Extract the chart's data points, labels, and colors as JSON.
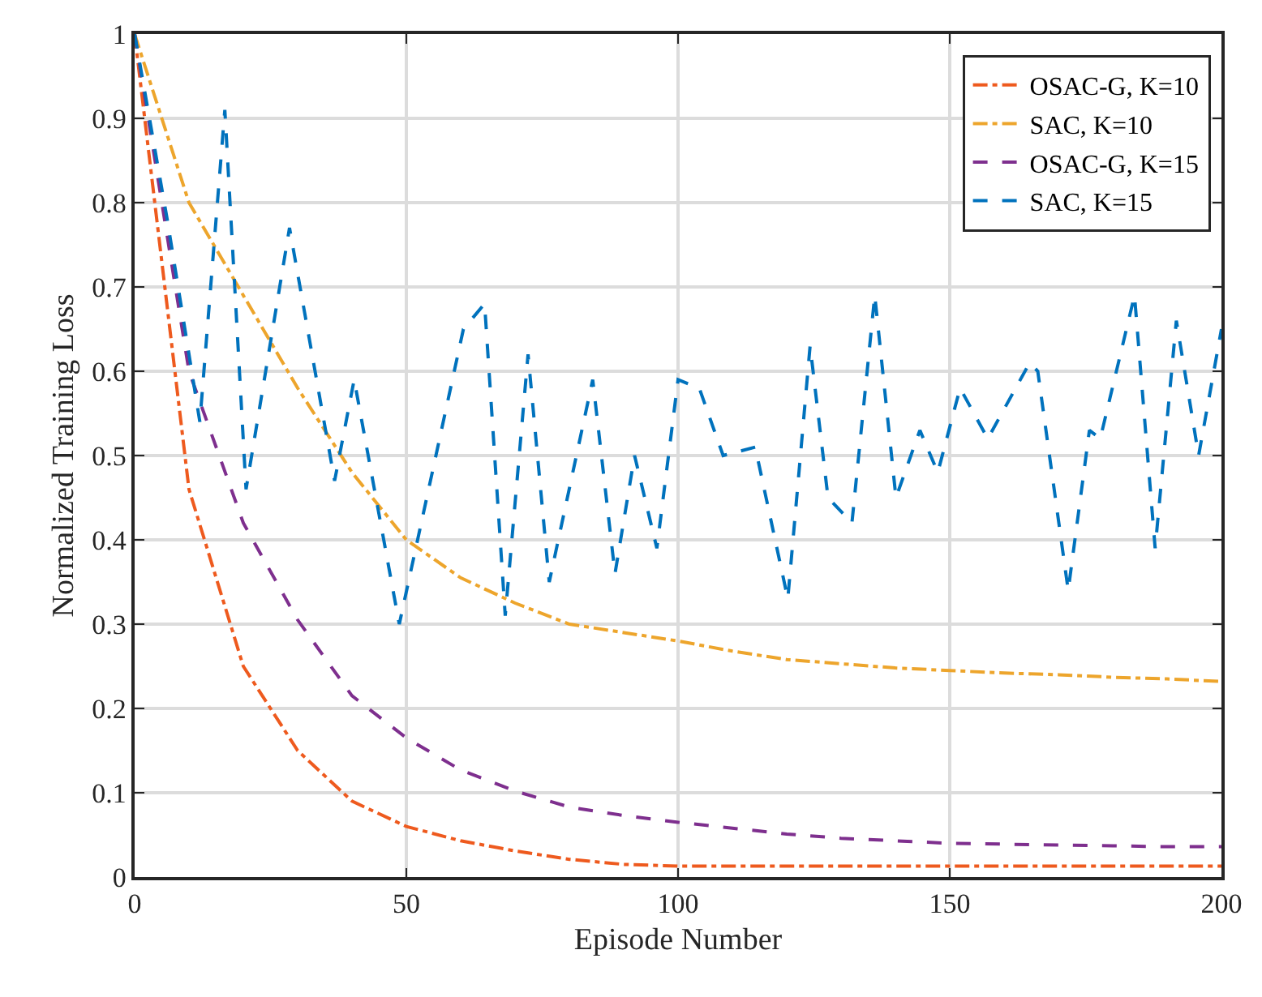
{
  "chart_data": {
    "type": "line",
    "xlabel": "Episode Number",
    "ylabel": "Normalized Training Loss",
    "xlim": [
      0,
      200
    ],
    "xticks": [
      0,
      50,
      100,
      150,
      200
    ],
    "ylim": [
      0,
      1
    ],
    "yticks": [
      0,
      0.1,
      0.2,
      0.3,
      0.4,
      0.5,
      0.6,
      0.7,
      0.8,
      0.9,
      1
    ],
    "grid": true,
    "legend": "top right",
    "marker": "none",
    "x": [
      0,
      10,
      20,
      30,
      40,
      50,
      60,
      70,
      80,
      90,
      100,
      110,
      120,
      130,
      140,
      150,
      160,
      170,
      180,
      190,
      200
    ],
    "series": [
      {
        "name": "OSAC-G, K=10",
        "color": "#ee5a1e",
        "line_style": "dashdot",
        "values": [
          1.0,
          0.46,
          0.25,
          0.15,
          0.09,
          0.06,
          0.043,
          0.031,
          0.021,
          0.015,
          0.013,
          0.013,
          0.013,
          0.013,
          0.013,
          0.013,
          0.013,
          0.013,
          0.013,
          0.013,
          0.013
        ]
      },
      {
        "name": "SAC, K=10",
        "color": "#eda52c",
        "line_style": "dashdot",
        "values": [
          1.0,
          0.8,
          0.69,
          0.58,
          0.48,
          0.4,
          0.355,
          0.325,
          0.3,
          0.29,
          0.28,
          0.268,
          0.258,
          0.253,
          0.248,
          0.245,
          0.242,
          0.24,
          0.237,
          0.235,
          0.232
        ]
      },
      {
        "name": "OSAC-G, K=15",
        "color": "#7e2f8e",
        "line_style": "dashed",
        "values": [
          1.0,
          0.6,
          0.42,
          0.305,
          0.215,
          0.165,
          0.127,
          0.102,
          0.083,
          0.073,
          0.065,
          0.058,
          0.051,
          0.046,
          0.043,
          0.04,
          0.039,
          0.038,
          0.037,
          0.036,
          0.036
        ]
      },
      {
        "name": "SAC, K=15",
        "color": "#0072bd",
        "line_style": "dashed",
        "x": [
          0,
          6,
          12,
          16.6,
          20.5,
          28.5,
          36.8,
          40.4,
          48.7,
          60.5,
          64.4,
          68.2,
          72.4,
          76.3,
          84.3,
          88.4,
          92,
          96.1,
          100,
          103.9,
          108.3,
          114.2,
          120.2,
          124.3,
          127.6,
          132,
          136.2,
          140.1,
          144.5,
          147.8,
          151.9,
          157,
          164.7,
          166.2,
          171.8,
          175.7,
          177.7,
          184,
          187.8,
          191.7,
          195.8,
          200
        ],
        "values": [
          1.0,
          0.78,
          0.54,
          0.91,
          0.46,
          0.77,
          0.47,
          0.59,
          0.3,
          0.65,
          0.68,
          0.31,
          0.62,
          0.35,
          0.59,
          0.36,
          0.5,
          0.39,
          0.59,
          0.58,
          0.5,
          0.51,
          0.33,
          0.63,
          0.45,
          0.42,
          0.69,
          0.45,
          0.53,
          0.48,
          0.58,
          0.52,
          0.61,
          0.6,
          0.34,
          0.53,
          0.52,
          0.69,
          0.39,
          0.66,
          0.5,
          0.65
        ]
      }
    ]
  }
}
